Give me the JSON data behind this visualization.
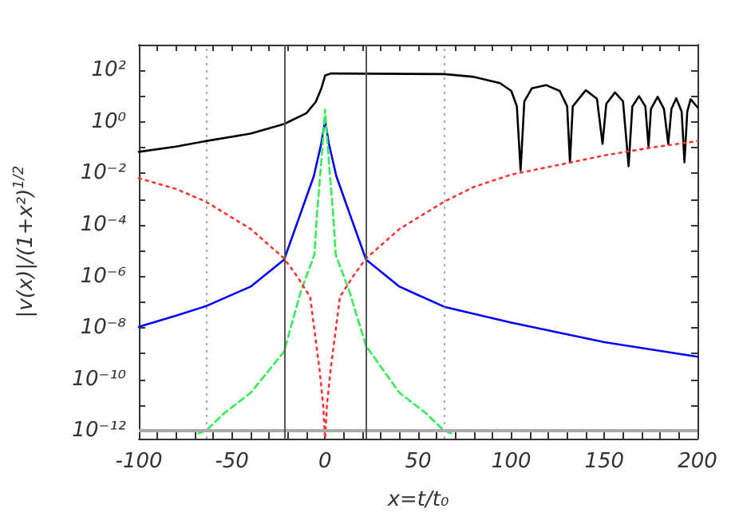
{
  "chart_data": {
    "type": "line",
    "xlabel": "x=t/t₀",
    "ylabel": "|v(x)|/(1+x²)$^{1/2}$",
    "log": "y",
    "grid": false,
    "marker": "none",
    "xlim": [
      -100,
      200
    ],
    "ylim": [
      5e-13,
      1000
    ],
    "xticks": [
      -100,
      {
        "value": -90,
        "label": null
      },
      {
        "value": -80,
        "label": null
      },
      {
        "value": -70,
        "label": null
      },
      {
        "value": -60,
        "label": null
      },
      -50,
      {
        "value": -40,
        "label": null
      },
      {
        "value": -30,
        "label": null
      },
      {
        "value": -20,
        "label": null
      },
      {
        "value": -10,
        "label": null
      },
      0,
      {
        "value": 10,
        "label": null
      },
      {
        "value": 20,
        "label": null
      },
      {
        "value": 30,
        "label": null
      },
      {
        "value": 40,
        "label": null
      },
      50,
      {
        "value": 60,
        "label": null
      },
      {
        "value": 70,
        "label": null
      },
      {
        "value": 80,
        "label": null
      },
      {
        "value": 90,
        "label": null
      },
      100,
      {
        "value": 110,
        "label": null
      },
      {
        "value": 120,
        "label": null
      },
      {
        "value": 130,
        "label": null
      },
      {
        "value": 140,
        "label": null
      },
      150,
      {
        "value": 160,
        "label": null
      },
      {
        "value": 170,
        "label": null
      },
      {
        "value": 180,
        "label": null
      },
      {
        "value": 190,
        "label": null
      },
      200
    ],
    "yticks": [
      {
        "value": 1e-12,
        "label": "10⁻¹²"
      },
      {
        "value": 1e-11,
        "label": null
      },
      {
        "value": 1e-10,
        "label": "10⁻¹⁰"
      },
      {
        "value": 1e-09,
        "label": null
      },
      {
        "value": 1e-08,
        "label": "10⁻⁸"
      },
      {
        "value": 1e-07,
        "label": null
      },
      {
        "value": 1e-06,
        "label": "10⁻⁶"
      },
      {
        "value": 1e-05,
        "label": null
      },
      {
        "value": 0.0001,
        "label": "10⁻⁴"
      },
      {
        "value": 0.001,
        "label": null
      },
      {
        "value": 0.01,
        "label": "10⁻²"
      },
      {
        "value": 0.1,
        "label": null
      },
      {
        "value": 1,
        "label": "10⁰"
      },
      {
        "value": 10,
        "label": null
      },
      {
        "value": 100,
        "label": "10²"
      }
    ],
    "ref_lines": [
      {
        "axis": "x",
        "value": -64,
        "color": "#aaaaaa",
        "line_style": "dotted"
      },
      {
        "axis": "x",
        "value": -22,
        "color": "#555555",
        "line_style": "solid"
      },
      {
        "axis": "x",
        "value": 22,
        "color": "#555555",
        "line_style": "solid"
      },
      {
        "axis": "x",
        "value": 64,
        "color": "#aaaaaa",
        "line_style": "dotted"
      },
      {
        "axis": "y",
        "value": 1e-12,
        "color": "#aaaaaa",
        "line_style": "solid"
      }
    ],
    "series": [
      {
        "color": "#000000",
        "line_style": "solid",
        "x": [
          -100,
          -80,
          -64,
          -40,
          -22,
          -10,
          -5,
          -2,
          0,
          3,
          64,
          80,
          94,
          100,
          103,
          105,
          107,
          111,
          118.6,
          126,
          130,
          131.5,
          133,
          140,
          146,
          149,
          151,
          155.7,
          160,
          163,
          165,
          168.6,
          172,
          173.7,
          175,
          178.6,
          182,
          184.3,
          186,
          188.6,
          191.5,
          193,
          194.5,
          196.3,
          200
        ],
        "values": [
          0.069,
          0.11,
          0.18,
          0.35,
          0.83,
          2.2,
          6,
          20,
          63,
          76,
          72,
          56,
          32,
          16,
          4,
          0.013,
          6.3,
          20,
          27,
          16,
          4,
          0.027,
          4,
          17,
          8,
          0.14,
          5,
          14,
          6.3,
          0.019,
          4,
          10,
          4,
          0.11,
          3.2,
          9.5,
          3.2,
          0.14,
          3.2,
          8.3,
          2.5,
          0.027,
          2.5,
          7.6,
          3.7
        ]
      },
      {
        "color": "#0000ff",
        "line_style": "solid",
        "x": [
          -100,
          -80,
          -64,
          -40,
          -22,
          -13,
          -6,
          -2,
          0,
          2,
          6,
          13,
          22,
          40,
          64,
          100,
          150,
          200
        ],
        "values": [
          1.1e-08,
          3e-08,
          7e-08,
          4e-07,
          4.5e-06,
          0.0003,
          0.008,
          0.15,
          1.15,
          0.15,
          0.008,
          0.0003,
          4.5e-06,
          4e-07,
          6.6e-08,
          1.6e-08,
          2.8e-09,
          7.6e-10
        ]
      },
      {
        "color": "#33ee55",
        "line_style": "dashed",
        "x": [
          -68,
          -64,
          -54,
          -40,
          -22,
          -13,
          -5.7,
          -4.3,
          -2,
          0,
          2,
          4.3,
          5.7,
          13,
          22,
          40,
          54,
          64,
          68
        ],
        "values": [
          8e-13,
          1e-12,
          5e-12,
          3e-11,
          1.2e-09,
          2.7e-07,
          7e-06,
          0.0003,
          0.03,
          3,
          0.03,
          0.0003,
          7e-06,
          2.7e-07,
          2e-09,
          3e-11,
          5e-12,
          1e-12,
          8e-13
        ]
      },
      {
        "color": "#ff3333",
        "line_style": "dotted",
        "x": [
          -100,
          -80,
          -64,
          -40,
          -22,
          -15,
          -8,
          -3,
          -1,
          0,
          1,
          3,
          8,
          15,
          22,
          40,
          64,
          80,
          100,
          130,
          150,
          175,
          200
        ],
        "values": [
          0.0065,
          0.0025,
          0.0008,
          7e-05,
          5e-06,
          1e-06,
          1.6e-07,
          2.5e-10,
          1e-11,
          5e-13,
          1e-11,
          2.5e-10,
          1.6e-07,
          1e-06,
          5e-06,
          7e-05,
          0.0008,
          0.003,
          0.009,
          0.025,
          0.05,
          0.1,
          0.18
        ]
      }
    ]
  }
}
